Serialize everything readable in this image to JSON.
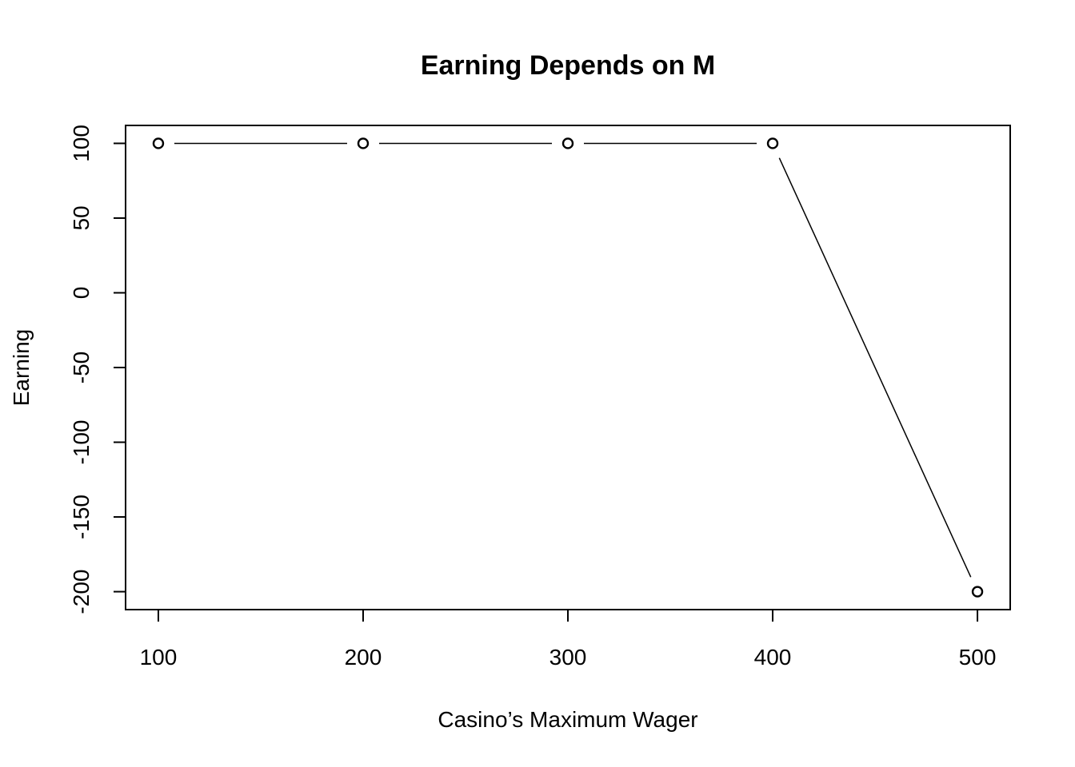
{
  "chart_data": {
    "type": "line",
    "title": "Earning Depends on M",
    "xlabel": "Casino’s Maximum Wager",
    "ylabel": "Earning",
    "x": [
      100,
      200,
      300,
      400,
      500
    ],
    "series": [
      {
        "values": [
          100,
          100,
          100,
          100,
          -200
        ]
      }
    ],
    "xticks": [
      100,
      200,
      300,
      400,
      500
    ],
    "yticks": [
      100,
      50,
      0,
      -50,
      -100,
      -150,
      -200
    ],
    "xlim": [
      84,
      516
    ],
    "ylim": [
      -212,
      112
    ],
    "grid": false,
    "markers": "open-circle",
    "line_color": "#000000"
  }
}
